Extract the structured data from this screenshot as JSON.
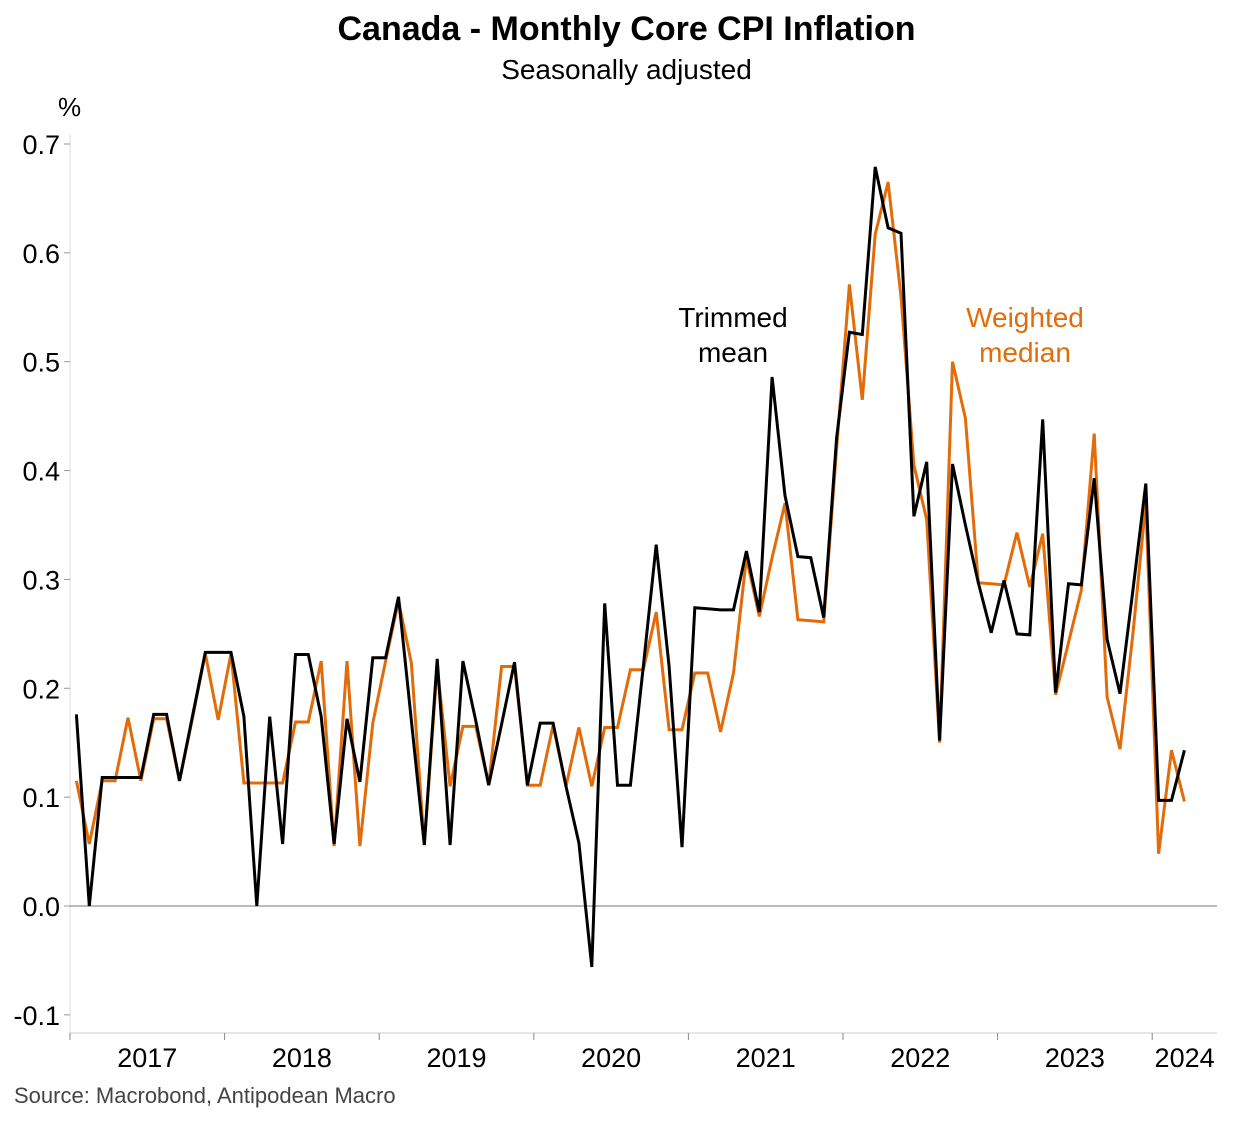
{
  "title": "Canada - Monthly Core CPI Inflation",
  "subtitle": "Seasonally adjusted",
  "source": "Source: Macrobond, Antipodean Macro",
  "chart_data": {
    "type": "line",
    "title": "Canada - Monthly Core CPI Inflation",
    "subtitle": "Seasonally adjusted",
    "ylabel": "%",
    "xlabel": "",
    "ylim": [
      -0.1,
      0.7
    ],
    "yticks": [
      "-0.1",
      "0.0",
      "0.1",
      "0.2",
      "0.3",
      "0.4",
      "0.5",
      "0.6",
      "0.7"
    ],
    "xticks": [
      "2017",
      "2018",
      "2019",
      "2020",
      "2021",
      "2022",
      "2023",
      "2024"
    ],
    "grid": false,
    "legend": "inline labels",
    "x": [
      "2017-01",
      "2017-02",
      "2017-03",
      "2017-04",
      "2017-05",
      "2017-06",
      "2017-07",
      "2017-08",
      "2017-09",
      "2017-10",
      "2017-11",
      "2017-12",
      "2018-01",
      "2018-02",
      "2018-03",
      "2018-04",
      "2018-05",
      "2018-06",
      "2018-07",
      "2018-08",
      "2018-09",
      "2018-10",
      "2018-11",
      "2018-12",
      "2019-01",
      "2019-02",
      "2019-03",
      "2019-04",
      "2019-05",
      "2019-06",
      "2019-07",
      "2019-08",
      "2019-09",
      "2019-10",
      "2019-11",
      "2019-12",
      "2020-01",
      "2020-02",
      "2020-03",
      "2020-04",
      "2020-05",
      "2020-06",
      "2020-07",
      "2020-08",
      "2020-09",
      "2020-10",
      "2020-11",
      "2020-12",
      "2021-01",
      "2021-02",
      "2021-03",
      "2021-04",
      "2021-05",
      "2021-06",
      "2021-07",
      "2021-08",
      "2021-09",
      "2021-10",
      "2021-11",
      "2021-12",
      "2022-01",
      "2022-02",
      "2022-03",
      "2022-04",
      "2022-05",
      "2022-06",
      "2022-07",
      "2022-08",
      "2022-09",
      "2022-10",
      "2022-11",
      "2022-12",
      "2023-01",
      "2023-02",
      "2023-03",
      "2023-04",
      "2023-05",
      "2023-06",
      "2023-07",
      "2023-08",
      "2023-09",
      "2023-10",
      "2023-11",
      "2023-12",
      "2024-01",
      "2024-02",
      "2024-03"
    ],
    "series": [
      {
        "name": "Trimmed mean",
        "color": "#000000",
        "values": [
          0.176,
          0.0,
          0.118,
          0.118,
          0.118,
          0.118,
          0.176,
          0.176,
          0.115,
          0.174,
          0.233,
          0.233,
          0.233,
          0.174,
          0.0,
          0.174,
          0.057,
          0.231,
          0.231,
          0.174,
          0.057,
          0.172,
          0.114,
          0.228,
          0.228,
          0.284,
          0.17,
          0.056,
          0.227,
          0.056,
          0.225,
          0.17,
          0.111,
          0.167,
          0.224,
          0.111,
          0.168,
          0.168,
          0.11,
          0.058,
          -0.056,
          0.278,
          0.111,
          0.111,
          0.22,
          0.332,
          0.22,
          0.054,
          0.274,
          0.273,
          0.272,
          0.272,
          0.326,
          0.27,
          0.486,
          0.377,
          0.321,
          0.32,
          0.265,
          0.43,
          0.527,
          0.525,
          0.679,
          0.623,
          0.618,
          0.358,
          0.408,
          0.152,
          0.406,
          0.35,
          0.297,
          0.251,
          0.299,
          0.25,
          0.249,
          0.447,
          0.196,
          0.296,
          0.295,
          0.393,
          0.245,
          0.195,
          0.29,
          0.388,
          0.097,
          0.097,
          0.143
        ]
      },
      {
        "name": "Weighted median",
        "color": "#E36C0A",
        "values": [
          0.115,
          0.057,
          0.115,
          0.115,
          0.173,
          0.115,
          0.172,
          0.172,
          0.115,
          0.172,
          0.232,
          0.171,
          0.232,
          0.113,
          0.113,
          0.113,
          0.113,
          0.169,
          0.169,
          0.225,
          0.055,
          0.225,
          0.055,
          0.168,
          0.225,
          0.28,
          0.223,
          0.056,
          0.22,
          0.11,
          0.165,
          0.165,
          0.111,
          0.22,
          0.22,
          0.111,
          0.111,
          0.166,
          0.11,
          0.164,
          0.11,
          0.164,
          0.164,
          0.217,
          0.217,
          0.27,
          0.162,
          0.162,
          0.214,
          0.214,
          0.16,
          0.214,
          0.32,
          0.266,
          0.32,
          0.37,
          0.263,
          0.262,
          0.261,
          0.42,
          0.571,
          0.465,
          0.617,
          0.665,
          0.56,
          0.405,
          0.355,
          0.15,
          0.5,
          0.448,
          0.297,
          0.296,
          0.295,
          0.343,
          0.293,
          0.342,
          0.194,
          0.242,
          0.29,
          0.434,
          0.192,
          0.144,
          0.25,
          0.37,
          0.048,
          0.143,
          0.096
        ]
      }
    ],
    "annotations": [
      {
        "text_lines": [
          "Trimmed",
          "mean"
        ],
        "color": "#000000"
      },
      {
        "text_lines": [
          "Weighted",
          "median"
        ],
        "color": "#E36C0A"
      }
    ]
  }
}
